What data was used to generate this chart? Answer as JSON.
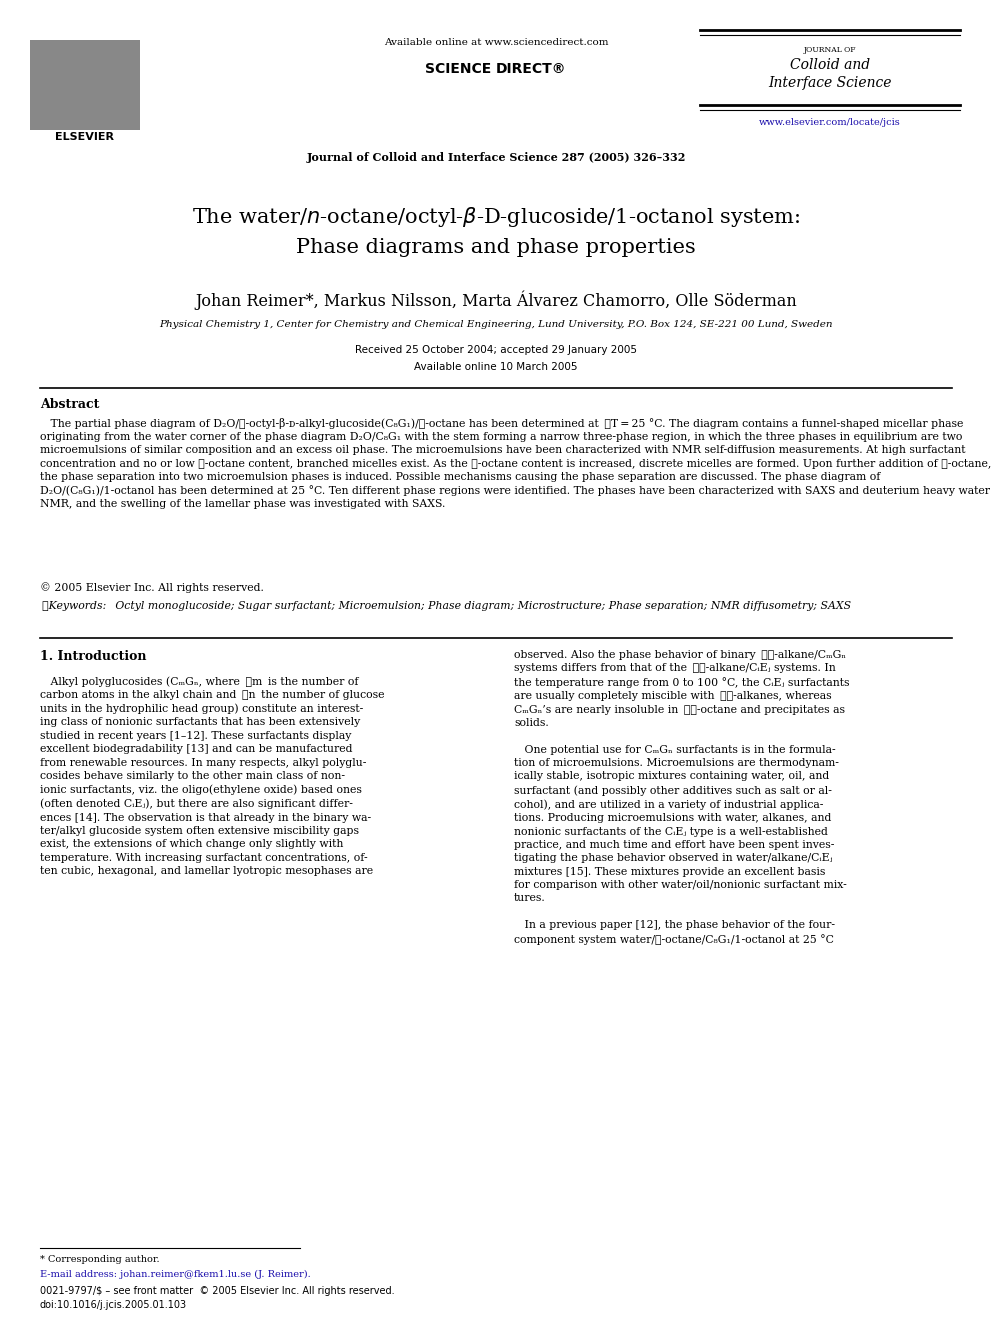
{
  "bg_color": "#ffffff",
  "header_available_online": "Available online at www.sciencedirect.com",
  "journal_ref": "Journal of Colloid and Interface Science 287 (2005) 326–332",
  "journal_name_small": "JOURNAL OF",
  "journal_name_large1": "Colloid and",
  "journal_name_large2": "Interface Science",
  "journal_url": "www.elsevier.com/locate/jcis",
  "title_line1": "The water/$n$-octane/octyl-$\\beta$-$\\mathrm{D}$-glucoside/1-octanol system:",
  "title_line2": "Phase diagrams and phase properties",
  "authors": "Johan Reimer*, Markus Nilsson, Marta Álvarez Chamorro, Olle Söderman",
  "affiliation": "Physical Chemistry 1, Center for Chemistry and Chemical Engineering, Lund University, P.O. Box 124, SE-221 00 Lund, Sweden",
  "received": "Received 25 October 2004; accepted 29 January 2005",
  "available": "Available online 10 March 2005",
  "abstract_title": "Abstract",
  "copyright": "© 2005 Elsevier Inc. All rights reserved.",
  "keywords_line": "Keywords:  Octyl monoglucoside; Sugar surfactant; Microemulsion; Phase diagram; Microstructure; Phase separation; NMR diffusometry; SAXS",
  "intro_section": "1. Introduction",
  "footnote_star": "* Corresponding author.",
  "footnote_email": "E-mail address: johan.reimer@fkem1.lu.se (J. Reimer).",
  "footnote_issn": "0021-9797/$ – see front matter  © 2005 Elsevier Inc. All rights reserved.",
  "footnote_doi": "doi:10.1016/j.jcis.2005.01.103"
}
